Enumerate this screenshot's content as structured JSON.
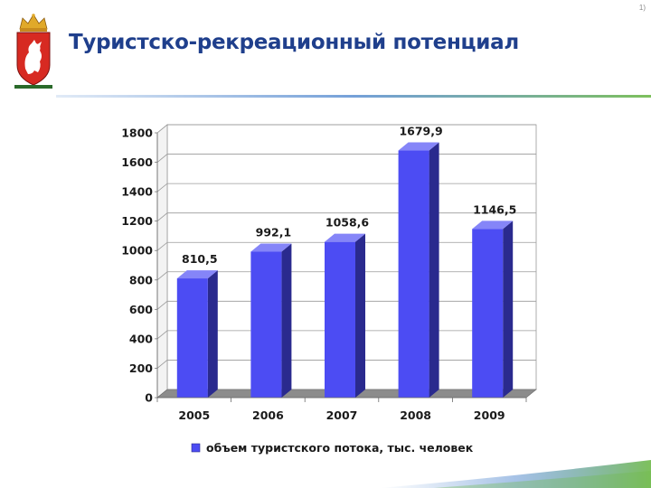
{
  "header": {
    "page_number": "1)",
    "title": "Туристско-рекреационный потенциал",
    "emblem": "sverdlovsk-coat-of-arms-icon"
  },
  "colors": {
    "title": "#1f3f8c",
    "bar_front": "#4c4cf3",
    "bar_side": "#2a2a8e",
    "bar_top": "#8585f8",
    "accent_green": "#6fb94a",
    "accent_blue": "#3a78c8"
  },
  "chart_data": {
    "type": "bar",
    "style": "3d",
    "categories": [
      "2005",
      "2006",
      "2007",
      "2008",
      "2009"
    ],
    "series": [
      {
        "name": "объем туристского потока, тыс. человек",
        "values": [
          810.5,
          992.1,
          1058.6,
          1679.9,
          1146.5
        ],
        "labels": [
          "810,5",
          "992,1",
          "1058,6",
          "1679,9",
          "1146,5"
        ]
      }
    ],
    "y_ticks": [
      "0",
      "200",
      "400",
      "600",
      "800",
      "1000",
      "1200",
      "1400",
      "1600",
      "1800"
    ],
    "ylim": [
      0,
      1800
    ],
    "grid": true,
    "legend_position": "bottom",
    "title": "",
    "xlabel": "",
    "ylabel": ""
  }
}
